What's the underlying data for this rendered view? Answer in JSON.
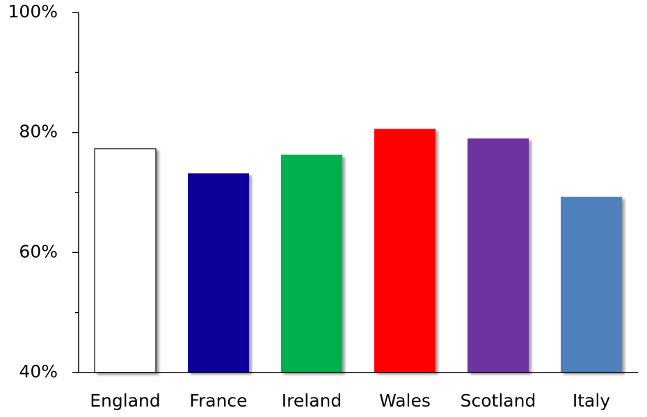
{
  "chart_data": {
    "type": "bar",
    "categories": [
      "England",
      "France",
      "Ireland",
      "Wales",
      "Scotland",
      "Italy"
    ],
    "values": [
      77.3,
      73.2,
      76.3,
      80.6,
      79.0,
      69.3
    ],
    "colors": [
      "#ffffff",
      "#0c0699",
      "#00b050",
      "#ff0000",
      "#7030a0",
      "#4f81bd"
    ],
    "edgecolor": "#000000",
    "ylim": [
      40,
      100
    ],
    "yticks": [
      {
        "value": 40,
        "label": "40%"
      },
      {
        "value": 60,
        "label": "60%"
      },
      {
        "value": 80,
        "label": "80%"
      },
      {
        "value": 100,
        "label": "100%"
      }
    ],
    "minor_yticks": [
      50,
      70,
      90
    ],
    "grid": false
  }
}
